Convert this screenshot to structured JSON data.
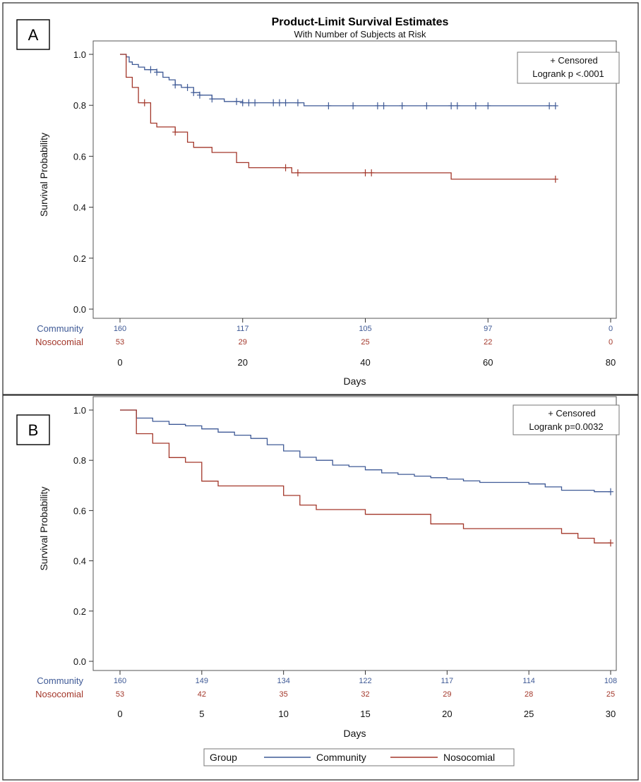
{
  "colors": {
    "community": "#3f5a96",
    "nosocomial": "#a3372a"
  },
  "legend": {
    "title": "Group",
    "entries": [
      "Community",
      "Nosocomial"
    ]
  },
  "chart_data": [
    {
      "type": "line",
      "panel_label": "A",
      "title": "Product-Limit Survival Estimates",
      "subtitle": "With Number of Subjects at Risk",
      "xlabel": "Days",
      "ylabel": "Survival Probability",
      "xlim": [
        0,
        80
      ],
      "ylim": [
        0,
        1
      ],
      "x_ticks": [
        0,
        20,
        40,
        60,
        80
      ],
      "y_ticks": [
        "0.0",
        "0.2",
        "0.4",
        "0.6",
        "0.8",
        "1.0"
      ],
      "inset": [
        "+ Censored",
        "Logrank p <.0001"
      ],
      "series": [
        {
          "name": "Community",
          "steps": [
            [
              0,
              1.0
            ],
            [
              1,
              0.99
            ],
            [
              1.5,
              0.97
            ],
            [
              2,
              0.96
            ],
            [
              3,
              0.95
            ],
            [
              4,
              0.94
            ],
            [
              6,
              0.93
            ],
            [
              7,
              0.91
            ],
            [
              8,
              0.9
            ],
            [
              9,
              0.88
            ],
            [
              10,
              0.87
            ],
            [
              12,
              0.85
            ],
            [
              13,
              0.84
            ],
            [
              15,
              0.825
            ],
            [
              17,
              0.815
            ],
            [
              20,
              0.81
            ],
            [
              30,
              0.798
            ],
            [
              71,
              0.798
            ]
          ],
          "censored_x": [
            5,
            6,
            9,
            11,
            12,
            13,
            15,
            19,
            20,
            21,
            22,
            25,
            26,
            27,
            29,
            34,
            38,
            42,
            43,
            46,
            50,
            54,
            55,
            58,
            60,
            70,
            71
          ]
        },
        {
          "name": "Nosocomial",
          "steps": [
            [
              0,
              1.0
            ],
            [
              1,
              0.96
            ],
            [
              1,
              0.91
            ],
            [
              2,
              0.87
            ],
            [
              3,
              0.81
            ],
            [
              5,
              0.73
            ],
            [
              6,
              0.715
            ],
            [
              9,
              0.695
            ],
            [
              11,
              0.655
            ],
            [
              12,
              0.635
            ],
            [
              15,
              0.615
            ],
            [
              19,
              0.575
            ],
            [
              21,
              0.555
            ],
            [
              28,
              0.535
            ],
            [
              54,
              0.51
            ],
            [
              71,
              0.51
            ]
          ],
          "censored_x": [
            4,
            9,
            27,
            29,
            40,
            41,
            71
          ]
        }
      ],
      "risk_table": {
        "x": [
          0,
          20,
          40,
          60,
          80
        ],
        "rows": [
          {
            "name": "Community",
            "values": [
              "160",
              "117",
              "105",
              "97",
              "0"
            ]
          },
          {
            "name": "Nosocomial",
            "values": [
              "53",
              "29",
              "25",
              "22",
              "0"
            ]
          }
        ]
      }
    },
    {
      "type": "line",
      "panel_label": "B",
      "title": "",
      "subtitle": "",
      "xlabel": "Days",
      "ylabel": "Survival Probability",
      "xlim": [
        0,
        30
      ],
      "ylim": [
        0,
        1
      ],
      "x_ticks": [
        0,
        5,
        10,
        15,
        20,
        25,
        30
      ],
      "y_ticks": [
        "0.0",
        "0.2",
        "0.4",
        "0.6",
        "0.8",
        "1.0"
      ],
      "inset": [
        "+ Censored",
        "Logrank p=0.0032"
      ],
      "series": [
        {
          "name": "Community",
          "steps": [
            [
              0,
              1.0
            ],
            [
              1,
              0.968
            ],
            [
              2,
              0.955
            ],
            [
              3,
              0.943
            ],
            [
              4,
              0.937
            ],
            [
              5,
              0.925
            ],
            [
              6,
              0.912
            ],
            [
              7,
              0.9
            ],
            [
              8,
              0.887
            ],
            [
              9,
              0.862
            ],
            [
              10,
              0.837
            ],
            [
              11,
              0.812
            ],
            [
              12,
              0.8
            ],
            [
              13,
              0.781
            ],
            [
              14,
              0.775
            ],
            [
              15,
              0.762
            ],
            [
              16,
              0.75
            ],
            [
              17,
              0.744
            ],
            [
              18,
              0.737
            ],
            [
              19,
              0.731
            ],
            [
              20,
              0.725
            ],
            [
              21,
              0.718
            ],
            [
              22,
              0.712
            ],
            [
              25,
              0.706
            ],
            [
              26,
              0.694
            ],
            [
              27,
              0.681
            ],
            [
              29,
              0.675
            ],
            [
              30,
              0.675
            ]
          ],
          "censored_x": [
            30
          ]
        },
        {
          "name": "Nosocomial",
          "steps": [
            [
              0,
              1.0
            ],
            [
              1,
              0.906
            ],
            [
              2,
              0.868
            ],
            [
              3,
              0.811
            ],
            [
              4,
              0.792
            ],
            [
              5,
              0.717
            ],
            [
              6,
              0.698
            ],
            [
              10,
              0.66
            ],
            [
              11,
              0.622
            ],
            [
              12,
              0.604
            ],
            [
              15,
              0.585
            ],
            [
              19,
              0.547
            ],
            [
              21,
              0.528
            ],
            [
              27,
              0.509
            ],
            [
              28,
              0.49
            ],
            [
              29,
              0.471
            ],
            [
              30,
              0.471
            ]
          ],
          "censored_x": [
            30
          ]
        }
      ],
      "risk_table": {
        "x": [
          0,
          5,
          10,
          15,
          20,
          25,
          30
        ],
        "rows": [
          {
            "name": "Community",
            "values": [
              "160",
              "149",
              "134",
              "122",
              "117",
              "114",
              "108"
            ]
          },
          {
            "name": "Nosocomial",
            "values": [
              "53",
              "42",
              "35",
              "32",
              "29",
              "28",
              "25"
            ]
          }
        ]
      }
    }
  ]
}
